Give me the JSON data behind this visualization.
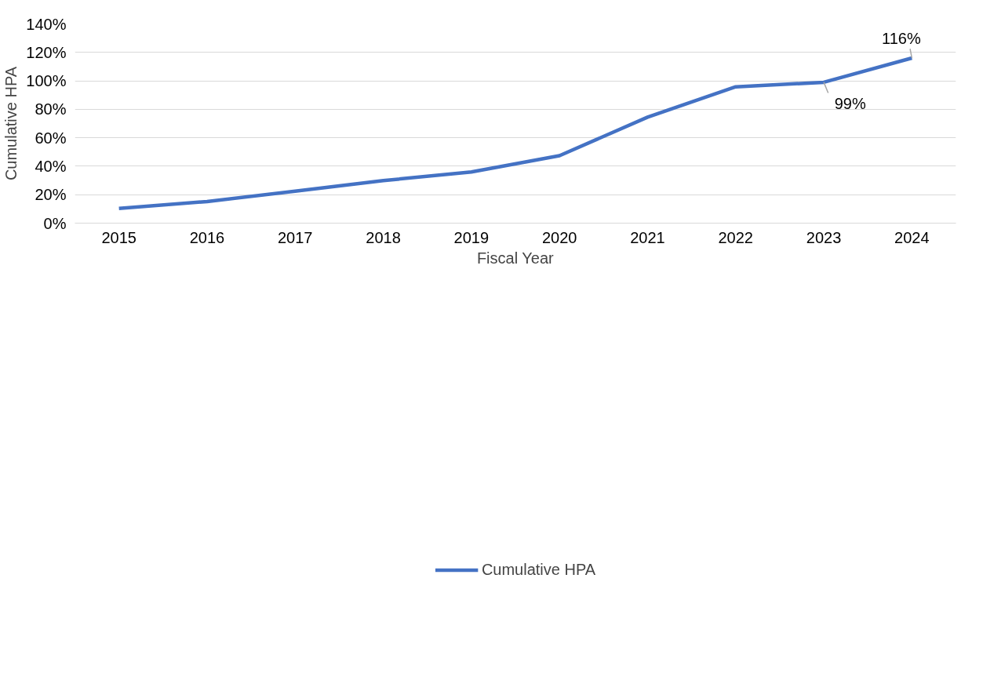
{
  "chart_data": {
    "type": "line",
    "xlabel": "Fiscal Year",
    "ylabel": "Cumulative HPA",
    "categories": [
      "2015",
      "2016",
      "2017",
      "2018",
      "2019",
      "2020",
      "2021",
      "2022",
      "2023",
      "2024"
    ],
    "series": [
      {
        "name": "Cumulative HPA",
        "color": "#4472c4",
        "values": [
          10.3,
          15.2,
          22.5,
          29.9,
          36,
          47.4,
          74.5,
          95.8,
          99,
          116
        ],
        "value_labels": [
          null,
          null,
          null,
          null,
          null,
          null,
          null,
          null,
          "99%",
          "116%"
        ]
      }
    ],
    "ylim": [
      0,
      140
    ],
    "yticks": [
      {
        "value": 0,
        "label": "0%"
      },
      {
        "value": 20,
        "label": "20%"
      },
      {
        "value": 40,
        "label": "40%"
      },
      {
        "value": 60,
        "label": "60%"
      },
      {
        "value": 80,
        "label": "80%"
      },
      {
        "value": 100,
        "label": "100%"
      },
      {
        "value": 120,
        "label": "120%"
      },
      {
        "value": 140,
        "label": "140%"
      }
    ],
    "grid": "y",
    "legend": "bottom",
    "marker": "none",
    "line_style": "solid"
  }
}
